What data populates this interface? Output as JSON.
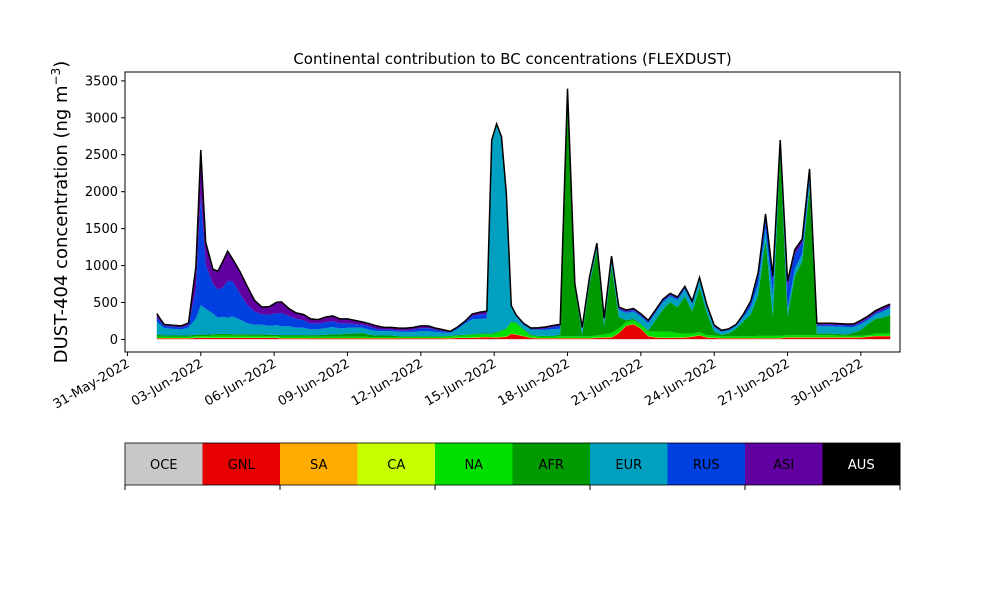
{
  "chart_data": {
    "type": "area",
    "title": "Continental contribution to BC concentrations (FLEXDUST)",
    "ylabel": {
      "main": "DUST-404 concentration (ng m",
      "sup": "−3",
      "close": ")"
    },
    "ylim": [
      -170,
      3620
    ],
    "yticks": [
      0,
      500,
      1000,
      1500,
      2000,
      2500,
      3000,
      3500
    ],
    "x_unit": "day",
    "xlim": [
      -0.1,
      31.6
    ],
    "xticks": [
      {
        "x": 0,
        "label": "31-May-2022"
      },
      {
        "x": 3,
        "label": "03-Jun-2022"
      },
      {
        "x": 6,
        "label": "06-Jun-2022"
      },
      {
        "x": 9,
        "label": "09-Jun-2022"
      },
      {
        "x": 12,
        "label": "12-Jun-2022"
      },
      {
        "x": 15,
        "label": "15-Jun-2022"
      },
      {
        "x": 18,
        "label": "18-Jun-2022"
      },
      {
        "x": 21,
        "label": "21-Jun-2022"
      },
      {
        "x": 24,
        "label": "24-Jun-2022"
      },
      {
        "x": 27,
        "label": "27-Jun-2022"
      },
      {
        "x": 30,
        "label": "30-Jun-2022"
      }
    ],
    "x": [
      1.2,
      1.3,
      1.5,
      1.8,
      2.2,
      2.5,
      2.8,
      3.0,
      3.2,
      3.5,
      3.7,
      3.9,
      4.1,
      4.3,
      4.6,
      4.9,
      5.2,
      5.5,
      5.8,
      6.1,
      6.3,
      6.6,
      6.9,
      7.2,
      7.5,
      7.8,
      8.1,
      8.4,
      8.7,
      9.0,
      9.3,
      9.6,
      9.9,
      10.2,
      10.5,
      10.8,
      11.1,
      11.4,
      11.7,
      12.0,
      12.3,
      12.6,
      12.9,
      13.2,
      13.5,
      13.8,
      14.1,
      14.4,
      14.7,
      14.9,
      15.1,
      15.3,
      15.5,
      15.7,
      15.9,
      16.2,
      16.5,
      16.8,
      17.1,
      17.4,
      17.7,
      18.0,
      18.3,
      18.6,
      18.9,
      19.2,
      19.5,
      19.8,
      20.1,
      20.4,
      20.7,
      21.0,
      21.3,
      21.6,
      21.9,
      22.2,
      22.5,
      22.8,
      23.1,
      23.4,
      23.7,
      24.0,
      24.3,
      24.6,
      24.9,
      25.2,
      25.5,
      25.8,
      26.1,
      26.4,
      26.7,
      27.0,
      27.3,
      27.6,
      27.9,
      28.2,
      28.5,
      28.8,
      29.1,
      29.4,
      29.7,
      30.0,
      30.3,
      30.6,
      30.9,
      31.2
    ],
    "series": [
      {
        "name": "OCE",
        "color": "#c8c8c8",
        "values": [
          5,
          5,
          4,
          4,
          4,
          4,
          4,
          5,
          5,
          5,
          5,
          5,
          5,
          5,
          5,
          4,
          4,
          4,
          4,
          4,
          4,
          4,
          4,
          4,
          3,
          3,
          3,
          3,
          3,
          3,
          3,
          3,
          3,
          3,
          3,
          3,
          3,
          3,
          3,
          3,
          3,
          3,
          3,
          4,
          4,
          4,
          4,
          4,
          4,
          4,
          4,
          4,
          4,
          4,
          4,
          4,
          4,
          4,
          4,
          4,
          4,
          4,
          4,
          4,
          4,
          4,
          4,
          4,
          4,
          4,
          4,
          4,
          4,
          4,
          4,
          4,
          4,
          4,
          4,
          4,
          4,
          4,
          4,
          4,
          4,
          4,
          4,
          4,
          4,
          4,
          4,
          4,
          4,
          4,
          4,
          4,
          4,
          4,
          4,
          4,
          4,
          4,
          4,
          4,
          4,
          4
        ]
      },
      {
        "name": "GNL",
        "color": "#e60000",
        "values": [
          10,
          10,
          10,
          10,
          10,
          10,
          15,
          15,
          15,
          15,
          15,
          15,
          15,
          15,
          15,
          15,
          15,
          15,
          15,
          15,
          10,
          10,
          10,
          10,
          10,
          10,
          10,
          10,
          10,
          10,
          10,
          10,
          10,
          10,
          10,
          10,
          10,
          10,
          10,
          10,
          10,
          10,
          10,
          10,
          15,
          15,
          15,
          20,
          25,
          20,
          20,
          25,
          30,
          70,
          60,
          40,
          15,
          10,
          10,
          10,
          10,
          10,
          10,
          10,
          10,
          15,
          20,
          20,
          80,
          180,
          200,
          140,
          40,
          20,
          15,
          15,
          15,
          20,
          30,
          50,
          20,
          15,
          10,
          10,
          10,
          10,
          10,
          10,
          10,
          10,
          10,
          20,
          20,
          20,
          20,
          20,
          20,
          20,
          20,
          20,
          20,
          20,
          30,
          40,
          40,
          40
        ]
      },
      {
        "name": "SA",
        "color": "#ffab00",
        "values": [
          2,
          2,
          2,
          2,
          2,
          2,
          2,
          2,
          2,
          2,
          2,
          2,
          2,
          2,
          2,
          2,
          2,
          2,
          2,
          2,
          2,
          2,
          2,
          2,
          2,
          2,
          2,
          2,
          2,
          2,
          2,
          2,
          2,
          2,
          2,
          2,
          2,
          2,
          2,
          2,
          2,
          2,
          2,
          2,
          2,
          2,
          2,
          2,
          2,
          2,
          2,
          2,
          2,
          2,
          2,
          2,
          2,
          2,
          2,
          2,
          2,
          2,
          2,
          2,
          2,
          2,
          2,
          2,
          2,
          2,
          2,
          2,
          2,
          2,
          2,
          2,
          2,
          2,
          2,
          2,
          2,
          2,
          2,
          2,
          2,
          2,
          2,
          2,
          2,
          2,
          2,
          2,
          2,
          2,
          2,
          2,
          2,
          2,
          2,
          2,
          2,
          2,
          2,
          2,
          2,
          2
        ]
      },
      {
        "name": "CA",
        "color": "#c8ff00",
        "values": [
          3,
          3,
          3,
          3,
          3,
          3,
          3,
          3,
          3,
          3,
          3,
          3,
          3,
          3,
          3,
          3,
          3,
          3,
          3,
          3,
          3,
          3,
          3,
          3,
          3,
          3,
          3,
          3,
          3,
          3,
          3,
          3,
          3,
          3,
          3,
          3,
          3,
          3,
          3,
          3,
          3,
          3,
          3,
          3,
          3,
          3,
          3,
          3,
          3,
          3,
          3,
          3,
          3,
          3,
          3,
          3,
          3,
          3,
          3,
          3,
          3,
          3,
          3,
          3,
          3,
          3,
          3,
          3,
          3,
          3,
          3,
          3,
          3,
          3,
          3,
          3,
          3,
          3,
          3,
          3,
          3,
          3,
          3,
          3,
          3,
          3,
          3,
          3,
          3,
          3,
          3,
          3,
          3,
          3,
          3,
          3,
          3,
          3,
          3,
          3,
          3,
          3,
          3,
          3,
          3,
          3
        ]
      },
      {
        "name": "NA",
        "color": "#00e000",
        "values": [
          20,
          20,
          15,
          15,
          15,
          15,
          20,
          20,
          20,
          25,
          30,
          30,
          30,
          25,
          25,
          25,
          25,
          25,
          20,
          20,
          20,
          20,
          20,
          20,
          20,
          20,
          20,
          20,
          20,
          20,
          20,
          20,
          15,
          15,
          15,
          15,
          15,
          15,
          15,
          15,
          15,
          15,
          15,
          20,
          25,
          30,
          40,
          40,
          40,
          40,
          60,
          80,
          100,
          150,
          150,
          80,
          30,
          20,
          20,
          20,
          25,
          25,
          25,
          25,
          25,
          30,
          40,
          60,
          60,
          50,
          50,
          50,
          60,
          80,
          80,
          80,
          60,
          50,
          40,
          40,
          30,
          30,
          25,
          25,
          25,
          25,
          25,
          30,
          30,
          30,
          30,
          30,
          30,
          30,
          30,
          30,
          30,
          30,
          25,
          20,
          20,
          20,
          20,
          30,
          30,
          30
        ]
      },
      {
        "name": "AFR",
        "color": "#009900",
        "values": [
          20,
          20,
          20,
          20,
          20,
          20,
          20,
          20,
          20,
          20,
          20,
          20,
          20,
          20,
          20,
          20,
          20,
          20,
          20,
          20,
          20,
          20,
          20,
          20,
          20,
          20,
          25,
          30,
          30,
          40,
          40,
          50,
          30,
          20,
          20,
          20,
          10,
          10,
          10,
          10,
          10,
          10,
          10,
          10,
          10,
          10,
          10,
          10,
          10,
          10,
          10,
          10,
          10,
          10,
          10,
          10,
          10,
          10,
          10,
          10,
          20,
          3300,
          650,
          20,
          700,
          1150,
          100,
          900,
          150,
          20,
          20,
          10,
          10,
          150,
          300,
          400,
          350,
          500,
          300,
          600,
          300,
          50,
          20,
          40,
          100,
          200,
          300,
          550,
          1300,
          250,
          2500,
          250,
          800,
          1000,
          2000,
          20,
          20,
          20,
          20,
          20,
          40,
          80,
          150,
          200,
          220,
          250
        ]
      },
      {
        "name": "EUR",
        "color": "#00a0c0",
        "values": [
          180,
          150,
          100,
          90,
          80,
          110,
          220,
          400,
          350,
          280,
          220,
          230,
          220,
          240,
          200,
          150,
          130,
          130,
          120,
          130,
          120,
          120,
          100,
          100,
          80,
          80,
          90,
          100,
          80,
          80,
          80,
          70,
          70,
          60,
          60,
          60,
          60,
          60,
          60,
          70,
          70,
          60,
          50,
          40,
          80,
          150,
          200,
          200,
          200,
          2600,
          2800,
          2600,
          1800,
          200,
          80,
          60,
          70,
          80,
          80,
          90,
          80,
          30,
          40,
          60,
          60,
          60,
          80,
          100,
          100,
          100,
          100,
          100,
          100,
          100,
          100,
          80,
          100,
          100,
          100,
          100,
          80,
          60,
          40,
          40,
          40,
          60,
          100,
          150,
          150,
          300,
          100,
          100,
          100,
          100,
          100,
          100,
          100,
          100,
          100,
          100,
          80,
          80,
          60,
          60,
          80,
          100
        ]
      },
      {
        "name": "RUS",
        "color": "#0040e0",
        "values": [
          60,
          50,
          30,
          30,
          30,
          30,
          400,
          1500,
          600,
          400,
          380,
          400,
          500,
          480,
          350,
          250,
          180,
          140,
          150,
          160,
          180,
          140,
          120,
          100,
          80,
          80,
          80,
          80,
          70,
          60,
          50,
          40,
          40,
          30,
          20,
          20,
          20,
          20,
          30,
          40,
          40,
          30,
          20,
          10,
          20,
          20,
          40,
          60,
          60,
          10,
          10,
          10,
          10,
          10,
          10,
          10,
          10,
          10,
          20,
          30,
          40,
          10,
          10,
          20,
          20,
          20,
          20,
          20,
          20,
          20,
          20,
          20,
          20,
          20,
          20,
          20,
          20,
          20,
          20,
          20,
          10,
          10,
          10,
          10,
          10,
          20,
          50,
          120,
          150,
          200,
          20,
          300,
          200,
          150,
          100,
          20,
          20,
          20,
          20,
          20,
          20,
          20,
          20,
          20,
          20,
          20
        ]
      },
      {
        "name": "ASI",
        "color": "#6000a0",
        "values": [
          50,
          40,
          20,
          20,
          20,
          30,
          300,
          600,
          300,
          200,
          250,
          350,
          400,
          300,
          300,
          250,
          150,
          100,
          110,
          150,
          150,
          100,
          80,
          80,
          60,
          50,
          70,
          70,
          60,
          60,
          50,
          40,
          40,
          40,
          30,
          30,
          30,
          30,
          30,
          30,
          30,
          20,
          20,
          10,
          10,
          10,
          30,
          30,
          40,
          10,
          10,
          10,
          10,
          10,
          10,
          10,
          10,
          20,
          20,
          20,
          20,
          10,
          10,
          20,
          20,
          20,
          20,
          20,
          20,
          20,
          20,
          20,
          20,
          20,
          20,
          20,
          20,
          20,
          20,
          20,
          20,
          20,
          10,
          10,
          10,
          20,
          30,
          40,
          50,
          60,
          30,
          80,
          60,
          50,
          50,
          20,
          20,
          20,
          20,
          20,
          20,
          30,
          30,
          30,
          40,
          30
        ]
      },
      {
        "name": "AUS",
        "color": "#000000",
        "values": [
          0,
          0,
          0,
          0,
          0,
          0,
          0,
          0,
          0,
          0,
          0,
          0,
          0,
          0,
          0,
          0,
          0,
          0,
          0,
          0,
          0,
          0,
          0,
          0,
          0,
          0,
          0,
          0,
          0,
          0,
          0,
          0,
          0,
          0,
          0,
          0,
          0,
          0,
          0,
          0,
          0,
          0,
          0,
          0,
          0,
          0,
          0,
          0,
          0,
          0,
          0,
          0,
          0,
          0,
          0,
          0,
          0,
          0,
          0,
          0,
          0,
          0,
          0,
          0,
          0,
          0,
          0,
          0,
          0,
          0,
          0,
          0,
          0,
          0,
          0,
          0,
          0,
          0,
          0,
          0,
          0,
          0,
          0,
          0,
          0,
          0,
          0,
          0,
          0,
          0,
          0,
          0,
          0,
          0,
          0,
          0,
          0,
          0,
          0,
          0,
          0,
          0,
          0,
          0,
          0,
          0
        ]
      }
    ],
    "legend": {
      "placement": "bottom",
      "items": [
        {
          "label": "OCE",
          "color": "#c8c8c8",
          "text_color": "#000000"
        },
        {
          "label": "GNL",
          "color": "#e60000",
          "text_color": "#000000"
        },
        {
          "label": "SA",
          "color": "#ffab00",
          "text_color": "#000000"
        },
        {
          "label": "CA",
          "color": "#c8ff00",
          "text_color": "#000000"
        },
        {
          "label": "NA",
          "color": "#00e000",
          "text_color": "#000000"
        },
        {
          "label": "AFR",
          "color": "#009900",
          "text_color": "#000000"
        },
        {
          "label": "EUR",
          "color": "#00a0c0",
          "text_color": "#000000"
        },
        {
          "label": "RUS",
          "color": "#0040e0",
          "text_color": "#000000"
        },
        {
          "label": "ASI",
          "color": "#6000a0",
          "text_color": "#000000"
        },
        {
          "label": "AUS",
          "color": "#000000",
          "text_color": "#ffffff"
        }
      ]
    },
    "grid": false
  }
}
